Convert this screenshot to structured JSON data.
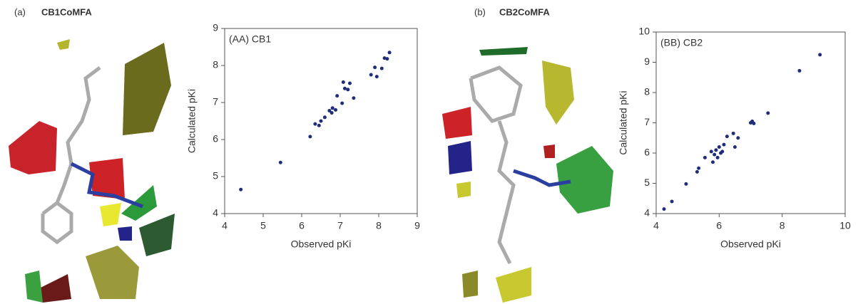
{
  "panels": [
    {
      "label": "(a)",
      "title": "CB1CoMFA"
    },
    {
      "label": "(b)",
      "title": "CB2CoMFA"
    }
  ],
  "chart_data": [
    {
      "type": "scatter",
      "title": "(AA) CB1",
      "x_label": "Observed pKi",
      "y_label": "Calculated pKi",
      "xlim": [
        4,
        9
      ],
      "xticks": [
        4,
        5,
        6,
        7,
        8,
        9
      ],
      "ylim": [
        4,
        9
      ],
      "yticks": [
        4,
        5,
        6,
        7,
        8,
        9
      ],
      "color": "#1f2d7a",
      "x": [
        4.42,
        5.45,
        6.22,
        6.35,
        6.45,
        6.5,
        6.6,
        6.72,
        6.78,
        6.8,
        6.88,
        6.92,
        7.05,
        7.08,
        7.12,
        7.2,
        7.25,
        7.35,
        7.8,
        7.9,
        7.95,
        8.08,
        8.15,
        8.22,
        8.28
      ],
      "y": [
        4.65,
        5.38,
        6.08,
        6.42,
        6.38,
        6.5,
        6.6,
        6.78,
        6.72,
        6.85,
        6.8,
        7.18,
        6.98,
        7.55,
        7.38,
        7.35,
        7.52,
        7.12,
        7.75,
        7.95,
        7.7,
        7.92,
        8.2,
        8.18,
        8.35
      ]
    },
    {
      "type": "scatter",
      "title": "(BB) CB2",
      "x_label": "Observed pKi",
      "y_label": "Calculated pKi",
      "xlim": [
        4,
        10
      ],
      "xticks": [
        4,
        6,
        8,
        10
      ],
      "ylim": [
        4,
        10
      ],
      "yticks": [
        4,
        5,
        6,
        7,
        8,
        9,
        10
      ],
      "color": "#1f2d7a",
      "x": [
        4.25,
        4.5,
        4.95,
        5.3,
        5.35,
        5.55,
        5.75,
        5.8,
        5.85,
        5.9,
        5.95,
        6.0,
        6.05,
        6.1,
        6.15,
        6.25,
        6.45,
        6.5,
        6.6,
        7.0,
        7.05,
        7.1,
        7.55,
        8.55,
        9.2
      ],
      "y": [
        4.15,
        4.4,
        4.98,
        5.38,
        5.5,
        5.85,
        6.05,
        5.7,
        5.95,
        6.1,
        5.85,
        6.2,
        6.0,
        6.05,
        6.28,
        6.55,
        6.65,
        6.2,
        6.5,
        7.0,
        7.05,
        6.98,
        7.32,
        8.72,
        9.25
      ]
    }
  ]
}
